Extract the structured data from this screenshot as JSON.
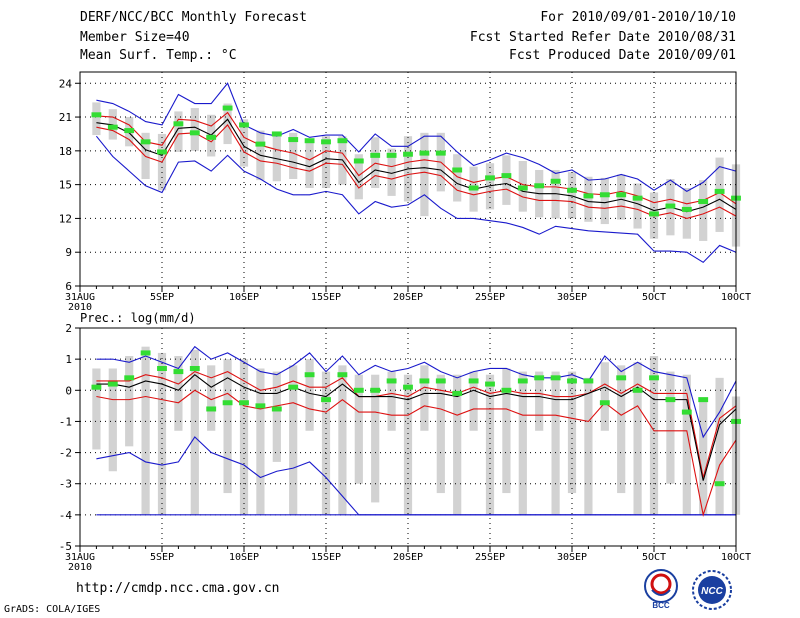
{
  "header": {
    "line1_left": "DERF/NCC/BCC Monthly Forecast",
    "line2_left": "Member Size=40",
    "line3_left": "Mean Surf. Temp.: °C",
    "line1_right": "For 2010/09/01-2010/10/10",
    "line2_right": "Fcst Started Refer Date 2010/08/31",
    "line3_right": "Fcst Produced Date 2010/09/01"
  },
  "footer": {
    "url": "http://cmdp.ncc.cma.gov.cn",
    "grads": "GrADS: COLA/IGES",
    "logo1_text": "BCC",
    "logo2_text": "NCC"
  },
  "colors": {
    "box": "#d2d2d2",
    "mean": "#33dd33",
    "envelope": "#1a1acc",
    "spread": "#dd1111",
    "median": "#000000",
    "grid": "#000000"
  },
  "chart_data": [
    {
      "type": "line",
      "title": "Mean Surf. Temp.: °C",
      "ylabel": "Mean Surf. Temp. (°C)",
      "ylim": [
        6,
        25
      ],
      "yticks": [
        6,
        9,
        12,
        15,
        18,
        21,
        24
      ],
      "x_range": [
        0,
        40
      ],
      "x_ticks": [
        {
          "x": 0,
          "label": "31AUG",
          "sub": "2010"
        },
        {
          "x": 5,
          "label": "5SEP"
        },
        {
          "x": 10,
          "label": "10SEP"
        },
        {
          "x": 15,
          "label": "15SEP"
        },
        {
          "x": 20,
          "label": "20SEP"
        },
        {
          "x": 25,
          "label": "25SEP"
        },
        {
          "x": 30,
          "label": "30SEP"
        },
        {
          "x": 35,
          "label": "5OCT"
        },
        {
          "x": 40,
          "label": "10OCT"
        }
      ],
      "x": [
        1,
        2,
        3,
        4,
        5,
        6,
        7,
        8,
        9,
        10,
        11,
        12,
        13,
        14,
        15,
        16,
        17,
        18,
        19,
        20,
        21,
        22,
        23,
        24,
        25,
        26,
        27,
        28,
        29,
        30,
        31,
        32,
        33,
        34,
        35,
        36,
        37,
        38,
        39,
        40
      ],
      "series": [
        {
          "name": "max",
          "values": [
            22.5,
            22.2,
            21.5,
            20.6,
            20.3,
            23.0,
            22.2,
            22.2,
            24.0,
            20.3,
            19.6,
            19.3,
            19.9,
            19.2,
            19.4,
            19.4,
            17.9,
            19.5,
            18.4,
            18.4,
            19.3,
            19.3,
            17.9,
            16.7,
            17.2,
            17.8,
            17.4,
            16.8,
            16.0,
            16.3,
            15.4,
            15.5,
            15.9,
            15.5,
            14.5,
            15.4,
            14.4,
            15.2,
            16.6,
            16.2
          ]
        },
        {
          "name": "p75",
          "values": [
            21.1,
            21.0,
            20.3,
            18.8,
            18.5,
            20.8,
            20.7,
            20.2,
            21.4,
            19.2,
            18.5,
            18.1,
            17.8,
            17.2,
            18.0,
            17.8,
            15.8,
            16.9,
            16.6,
            17.0,
            17.2,
            17.0,
            15.7,
            15.2,
            15.5,
            15.7,
            15.0,
            14.8,
            14.8,
            14.6,
            14.2,
            14.1,
            14.4,
            14.0,
            13.4,
            13.7,
            13.3,
            13.6,
            14.3,
            13.3
          ]
        },
        {
          "name": "median",
          "values": [
            20.5,
            20.3,
            19.6,
            18.1,
            17.6,
            20.0,
            20.1,
            19.4,
            20.8,
            18.4,
            17.6,
            17.3,
            17.0,
            16.6,
            17.3,
            17.2,
            15.2,
            16.3,
            16.0,
            16.4,
            16.5,
            16.3,
            15.1,
            14.6,
            14.9,
            15.1,
            14.4,
            14.2,
            14.2,
            14.0,
            13.5,
            13.4,
            13.7,
            13.3,
            12.7,
            13.0,
            12.6,
            13.0,
            13.7,
            12.8
          ]
        },
        {
          "name": "p25",
          "values": [
            20.1,
            19.8,
            19.0,
            17.5,
            17.0,
            19.5,
            19.6,
            18.8,
            20.3,
            17.9,
            17.1,
            16.9,
            16.5,
            16.2,
            16.9,
            16.8,
            14.7,
            15.8,
            15.5,
            15.9,
            16.1,
            15.8,
            14.5,
            14.1,
            14.4,
            14.6,
            13.9,
            13.6,
            13.6,
            13.5,
            13.0,
            12.9,
            13.1,
            12.8,
            12.2,
            12.5,
            12.0,
            12.4,
            13.0,
            12.2
          ]
        },
        {
          "name": "min",
          "values": [
            19.3,
            17.5,
            16.2,
            14.9,
            14.3,
            17.0,
            17.1,
            16.2,
            17.6,
            16.2,
            15.5,
            14.6,
            14.1,
            14.1,
            14.4,
            14.1,
            12.4,
            13.5,
            13.0,
            13.2,
            14.1,
            12.9,
            12.0,
            12.0,
            11.8,
            11.6,
            11.2,
            10.6,
            11.3,
            11.1,
            10.9,
            10.8,
            10.7,
            10.6,
            9.1,
            9.1,
            9.0,
            8.1,
            9.6,
            9.0
          ]
        },
        {
          "name": "ensemble-mean",
          "values": [
            21.2,
            20.1,
            19.8,
            18.8,
            17.9,
            20.4,
            19.6,
            19.2,
            21.8,
            20.3,
            18.6,
            19.5,
            19.0,
            18.9,
            18.8,
            18.9,
            17.1,
            17.6,
            17.6,
            17.7,
            17.8,
            17.8,
            16.3,
            14.7,
            15.6,
            15.8,
            14.7,
            14.9,
            15.3,
            14.5,
            14.0,
            14.1,
            14.1,
            13.8,
            12.4,
            13.1,
            12.8,
            13.5,
            14.4,
            13.8
          ]
        },
        {
          "name": "box-top",
          "values": [
            22.3,
            21.7,
            21.0,
            19.6,
            19.5,
            21.5,
            21.8,
            21.2,
            22.2,
            20.8,
            19.8,
            19.4,
            19.6,
            19.0,
            19.3,
            19.3,
            17.7,
            19.2,
            18.2,
            19.3,
            19.6,
            19.6,
            17.7,
            16.6,
            16.9,
            17.6,
            17.1,
            16.3,
            16.3,
            16.1,
            15.7,
            15.6,
            15.9,
            15.1,
            14.3,
            15.5,
            14.7,
            15.4,
            17.4,
            16.8
          ]
        },
        {
          "name": "box-bottom",
          "values": [
            19.4,
            19.0,
            18.4,
            15.5,
            14.5,
            17.9,
            18.0,
            17.5,
            18.6,
            16.6,
            15.4,
            15.3,
            15.5,
            14.7,
            14.7,
            15.0,
            13.7,
            14.7,
            14.0,
            13.5,
            12.2,
            14.4,
            13.5,
            12.6,
            12.8,
            13.2,
            12.6,
            12.1,
            12.0,
            12.0,
            11.7,
            11.5,
            11.9,
            11.1,
            10.2,
            10.5,
            10.2,
            10.0,
            10.8,
            9.5
          ]
        }
      ]
    },
    {
      "type": "line",
      "title": "Prec.: log(mm/d)",
      "ylabel": "Prec. log(mm/d)",
      "ylim": [
        -5,
        2
      ],
      "yticks": [
        -5,
        -4,
        -3,
        -2,
        -1,
        0,
        1,
        2
      ],
      "x_range": [
        0,
        40
      ],
      "x_ticks": [
        {
          "x": 0,
          "label": "31AUG",
          "sub": "2010"
        },
        {
          "x": 5,
          "label": "5SEP"
        },
        {
          "x": 10,
          "label": "10SEP"
        },
        {
          "x": 15,
          "label": "15SEP"
        },
        {
          "x": 20,
          "label": "20SEP"
        },
        {
          "x": 25,
          "label": "25SEP"
        },
        {
          "x": 30,
          "label": "30SEP"
        },
        {
          "x": 35,
          "label": "5OCT"
        },
        {
          "x": 40,
          "label": "10OCT"
        }
      ],
      "x": [
        1,
        2,
        3,
        4,
        5,
        6,
        7,
        8,
        9,
        10,
        11,
        12,
        13,
        14,
        15,
        16,
        17,
        18,
        19,
        20,
        21,
        22,
        23,
        24,
        25,
        26,
        27,
        28,
        29,
        30,
        31,
        32,
        33,
        34,
        35,
        36,
        37,
        38,
        39,
        40
      ],
      "series": [
        {
          "name": "max",
          "values": [
            1.0,
            1.0,
            0.9,
            1.1,
            0.9,
            0.7,
            1.4,
            1.0,
            1.2,
            0.9,
            0.6,
            0.5,
            0.8,
            1.2,
            0.6,
            1.1,
            0.5,
            0.8,
            0.6,
            0.7,
            0.9,
            0.6,
            0.4,
            0.6,
            0.7,
            0.7,
            0.5,
            0.4,
            0.4,
            0.5,
            0.3,
            1.1,
            0.6,
            0.9,
            0.6,
            0.5,
            0.4,
            -1.5,
            -0.7,
            0.3
          ]
        },
        {
          "name": "p75",
          "values": [
            0.3,
            0.3,
            0.3,
            0.5,
            0.4,
            0.2,
            0.6,
            0.4,
            0.6,
            0.3,
            0.0,
            0.1,
            0.3,
            0.1,
            0.1,
            0.4,
            -0.2,
            -0.2,
            -0.1,
            -0.2,
            0.1,
            0.0,
            -0.1,
            0.1,
            -0.1,
            0.0,
            -0.1,
            -0.1,
            -0.2,
            -0.2,
            -0.1,
            0.2,
            -0.1,
            0.2,
            -0.1,
            -0.1,
            -0.1,
            -2.8,
            -0.9,
            -0.5
          ]
        },
        {
          "name": "median",
          "values": [
            0.2,
            0.2,
            0.1,
            0.3,
            0.2,
            0.0,
            0.5,
            0.1,
            0.4,
            0.1,
            -0.1,
            -0.1,
            0.1,
            -0.1,
            -0.2,
            0.2,
            -0.2,
            -0.2,
            -0.2,
            -0.3,
            -0.1,
            -0.1,
            -0.2,
            0.0,
            -0.2,
            -0.1,
            -0.2,
            -0.2,
            -0.3,
            -0.3,
            -0.1,
            0.1,
            -0.2,
            0.1,
            -0.3,
            -0.3,
            -0.3,
            -2.9,
            -1.1,
            -0.6
          ]
        },
        {
          "name": "p25",
          "values": [
            -0.2,
            -0.3,
            -0.3,
            -0.2,
            -0.3,
            -0.4,
            0.0,
            -0.3,
            -0.1,
            -0.5,
            -0.6,
            -0.5,
            -0.4,
            -0.6,
            -0.7,
            -0.3,
            -0.7,
            -0.7,
            -0.8,
            -0.8,
            -0.5,
            -0.6,
            -0.8,
            -0.6,
            -0.6,
            -0.6,
            -0.8,
            -0.8,
            -0.8,
            -0.9,
            -1.0,
            -0.4,
            -0.8,
            -0.5,
            -1.3,
            -1.3,
            -1.3,
            -4.0,
            -2.4,
            -1.6
          ]
        },
        {
          "name": "min",
          "values": [
            -2.2,
            -2.1,
            -2.0,
            -2.3,
            -2.4,
            -2.3,
            -1.5,
            -2.0,
            -2.2,
            -2.4,
            -2.8,
            -2.6,
            -2.5,
            -2.3,
            -2.8,
            -3.4,
            -4.0,
            -4.0,
            -4.0,
            -4.0,
            -4.0,
            -4.0,
            -4.0,
            -4.0,
            -4.0,
            -4.0,
            -4.0,
            -4.0,
            -4.0,
            -4.0,
            -4.0,
            -4.0,
            -4.0,
            -4.0,
            -4.0,
            -4.0,
            -4.0,
            -4.0,
            -4.0,
            -4.0
          ]
        },
        {
          "name": "ensemble-mean",
          "values": [
            0.1,
            0.2,
            0.4,
            1.2,
            0.7,
            0.6,
            0.7,
            -0.6,
            -0.4,
            -0.4,
            -0.5,
            -0.6,
            0.1,
            0.5,
            -0.3,
            0.5,
            0.0,
            0.0,
            0.3,
            0.1,
            0.3,
            0.3,
            -0.1,
            0.3,
            0.2,
            0.0,
            0.3,
            0.4,
            0.4,
            0.3,
            0.3,
            -0.4,
            0.4,
            0.0,
            0.4,
            -0.3,
            -0.7,
            -0.3,
            -3.0,
            -1.0
          ]
        },
        {
          "name": "box-top",
          "values": [
            0.7,
            0.7,
            1.1,
            1.4,
            1.2,
            1.1,
            1.3,
            0.8,
            1.0,
            1.0,
            0.7,
            0.6,
            0.8,
            1.0,
            0.6,
            0.8,
            0.5,
            0.5,
            0.6,
            0.5,
            0.8,
            0.5,
            0.5,
            0.6,
            0.5,
            0.7,
            0.6,
            0.6,
            0.6,
            0.6,
            0.4,
            0.9,
            0.8,
            0.9,
            1.1,
            0.6,
            0.5,
            -0.3,
            0.4,
            -0.2
          ]
        },
        {
          "name": "box-bottom",
          "values": [
            -1.9,
            -2.6,
            -1.8,
            -4.0,
            -4.0,
            -1.3,
            -4.0,
            -1.3,
            -3.3,
            -4.0,
            -4.0,
            -2.3,
            -4.0,
            -1.3,
            -4.0,
            -4.0,
            -3.0,
            -3.6,
            -1.3,
            -4.0,
            -1.3,
            -3.3,
            -4.0,
            -1.3,
            -4.0,
            -3.3,
            -4.0,
            -1.3,
            -4.0,
            -3.3,
            -4.0,
            -1.3,
            -3.3,
            -4.0,
            -4.0,
            -3.0,
            -4.0,
            -4.0,
            -4.0,
            -4.0
          ]
        },
        {
          "name": "floor",
          "values": [
            -4.0,
            -4.0,
            -4.0,
            -4.0,
            -4.0,
            -4.0,
            -4.0,
            -4.0,
            -4.0,
            -4.0,
            -4.0,
            -4.0,
            -4.0,
            -4.0,
            -4.0,
            -4.0,
            -4.0,
            -4.0,
            -4.0,
            -4.0,
            -4.0,
            -4.0,
            -4.0,
            -4.0,
            -4.0,
            -4.0,
            -4.0,
            -4.0,
            -4.0,
            -4.0,
            -4.0,
            -4.0,
            -4.0,
            -4.0,
            -4.0,
            -4.0,
            -4.0,
            -4.0,
            -4.0,
            -4.0
          ]
        }
      ]
    }
  ]
}
